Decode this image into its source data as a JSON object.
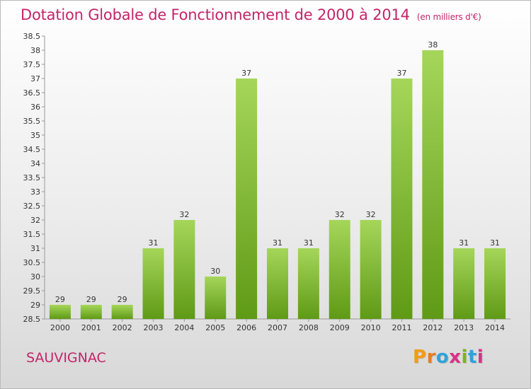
{
  "header": {
    "title": "Dotation Globale de Fonctionnement de 2000 à 2014",
    "unit": "(en milliers d'€)"
  },
  "footer": {
    "place": "SAUVIGNAC",
    "logo": "Proxiti",
    "logo_colors": [
      "#f39c12",
      "#e67e22",
      "#2ea3dc",
      "#d63384",
      "#7ab51d",
      "#2ea3dc",
      "#d63384"
    ]
  },
  "colors": {
    "title": "#c4246a",
    "bar_top": "#a5d65a",
    "bar_bottom": "#5f9a16",
    "axis": "#999999"
  },
  "chart_data": {
    "type": "bar",
    "title": "Dotation Globale de Fonctionnement de 2000 à 2014",
    "subtitle": "(en milliers d'€)",
    "categories": [
      "2000",
      "2001",
      "2002",
      "2003",
      "2004",
      "2005",
      "2006",
      "2007",
      "2008",
      "2009",
      "2010",
      "2011",
      "2012",
      "2013",
      "2014"
    ],
    "values": [
      29,
      29,
      29,
      31,
      32,
      30,
      37,
      31,
      31,
      32,
      32,
      37,
      38,
      31,
      31
    ],
    "ylim": [
      28.5,
      38.5
    ],
    "yticks": [
      "28.5",
      "29",
      "29.5",
      "30",
      "30.5",
      "31",
      "31.5",
      "32",
      "32.5",
      "33",
      "33.5",
      "34",
      "34.5",
      "35",
      "35.5",
      "36",
      "36.5",
      "37",
      "37.5",
      "38",
      "38.5"
    ],
    "grid": false,
    "legend": "none"
  }
}
